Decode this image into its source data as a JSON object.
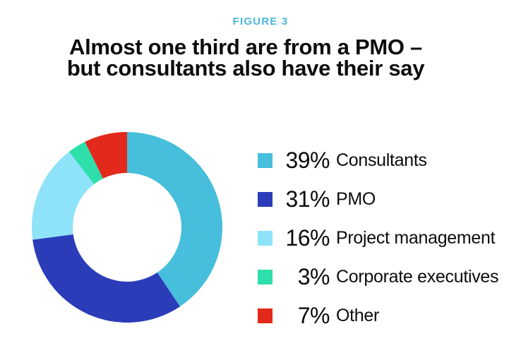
{
  "figure": {
    "label": "FIGURE 3",
    "label_color": "#4BB8DE"
  },
  "title": {
    "line1": "Almost one third are from a PMO –",
    "line2": "but consultants also have their say",
    "color": "#0c0c0c"
  },
  "chart_data": {
    "type": "pie",
    "variant": "donut",
    "title": "Almost one third are from a PMO – but consultants also have their say",
    "categories": [
      "Consultants",
      "PMO",
      "Project management",
      "Corporate executives",
      "Other"
    ],
    "values": [
      39,
      31,
      16,
      3,
      7
    ],
    "unit": "%",
    "colors": [
      "#47BEDC",
      "#2B3CB9",
      "#8EE3F9",
      "#2EDFAB",
      "#E2291B"
    ],
    "start_angle_deg": 0,
    "direction": "clockwise",
    "inner_radius_ratio": 0.57,
    "legend_position": "right",
    "background": "#ffffff"
  }
}
